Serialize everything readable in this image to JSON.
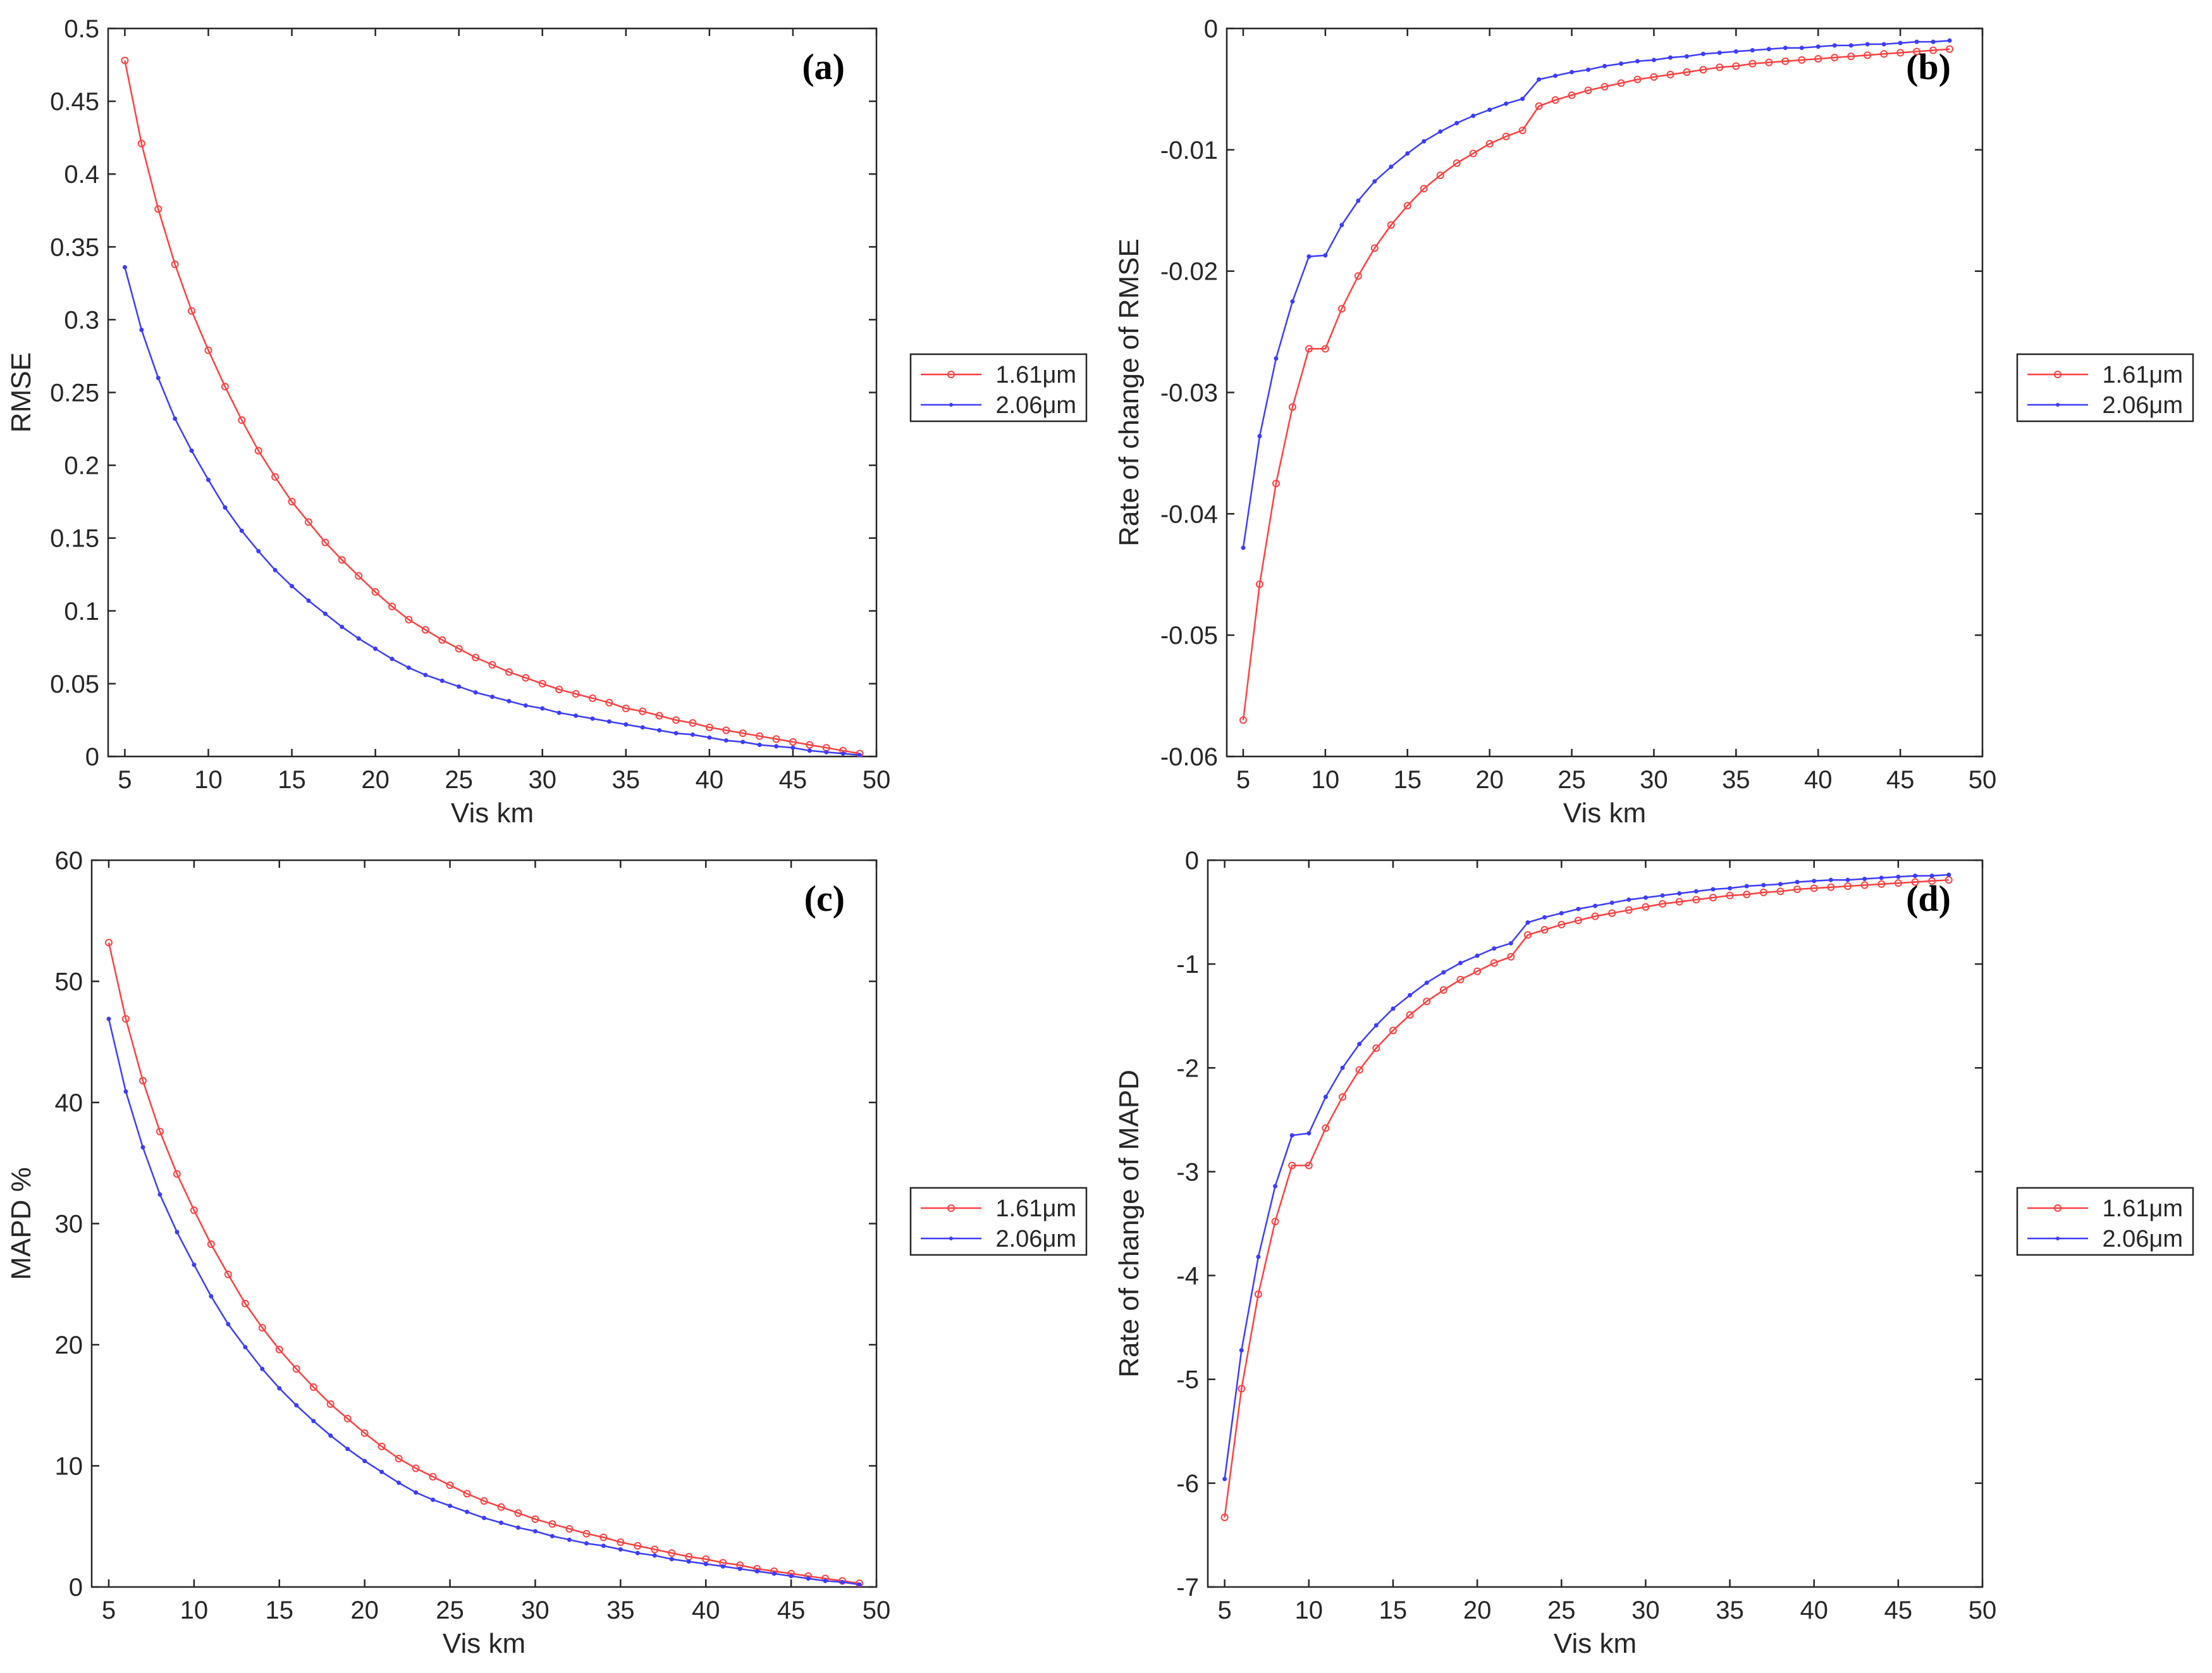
{
  "legend_series": [
    {
      "name": "1.61μm",
      "color": "#ff4040"
    },
    {
      "name": "2.06μm",
      "color": "#3c3cff"
    }
  ],
  "chart_data": [
    {
      "type": "line",
      "panel": "(a)",
      "xlabel": "Vis km",
      "ylabel": "RMSE",
      "xlim": [
        4,
        50
      ],
      "ylim": [
        0,
        0.5
      ],
      "xticks": [
        5,
        10,
        15,
        20,
        25,
        30,
        35,
        40,
        45,
        50
      ],
      "yticks": [
        0,
        0.05,
        0.1,
        0.15,
        0.2,
        0.25,
        0.3,
        0.35,
        0.4,
        0.45,
        0.5
      ],
      "x": [
        5,
        6,
        7,
        8,
        9,
        10,
        11,
        12,
        13,
        14,
        15,
        16,
        17,
        18,
        19,
        20,
        21,
        22,
        23,
        24,
        25,
        26,
        27,
        28,
        29,
        30,
        31,
        32,
        33,
        34,
        35,
        36,
        37,
        38,
        39,
        40,
        41,
        42,
        43,
        44,
        45,
        46,
        47,
        48,
        49
      ],
      "series": [
        {
          "name": "1.61μm",
          "marker": "circle",
          "values": [
            0.478,
            0.421,
            0.376,
            0.338,
            0.306,
            0.279,
            0.254,
            0.231,
            0.21,
            0.192,
            0.175,
            0.161,
            0.147,
            0.135,
            0.124,
            0.113,
            0.103,
            0.094,
            0.087,
            0.08,
            0.074,
            0.068,
            0.063,
            0.058,
            0.054,
            0.05,
            0.046,
            0.043,
            0.04,
            0.037,
            0.033,
            0.031,
            0.028,
            0.025,
            0.023,
            0.02,
            0.018,
            0.016,
            0.014,
            0.012,
            0.01,
            0.008,
            0.006,
            0.004,
            0.002
          ]
        },
        {
          "name": "2.06μm",
          "marker": "dot",
          "values": [
            0.336,
            0.293,
            0.26,
            0.232,
            0.21,
            0.19,
            0.171,
            0.155,
            0.141,
            0.128,
            0.117,
            0.107,
            0.098,
            0.089,
            0.081,
            0.074,
            0.067,
            0.061,
            0.056,
            0.052,
            0.048,
            0.044,
            0.041,
            0.038,
            0.035,
            0.033,
            0.03,
            0.028,
            0.026,
            0.024,
            0.022,
            0.02,
            0.018,
            0.016,
            0.015,
            0.013,
            0.011,
            0.01,
            0.008,
            0.007,
            0.006,
            0.004,
            0.003,
            0.002,
            0.001
          ]
        }
      ]
    },
    {
      "type": "line",
      "panel": "(b)",
      "xlabel": "Vis km",
      "ylabel": "Rate of change of RMSE",
      "xlim": [
        4,
        50
      ],
      "ylim": [
        -0.06,
        0
      ],
      "xticks": [
        5,
        10,
        15,
        20,
        25,
        30,
        35,
        40,
        45,
        50
      ],
      "yticks": [
        0,
        -0.01,
        -0.02,
        -0.03,
        -0.04,
        -0.05,
        -0.06
      ],
      "x": [
        5,
        6,
        7,
        8,
        9,
        10,
        11,
        12,
        13,
        14,
        15,
        16,
        17,
        18,
        19,
        20,
        21,
        22,
        23,
        24,
        25,
        26,
        27,
        28,
        29,
        30,
        31,
        32,
        33,
        34,
        35,
        36,
        37,
        38,
        39,
        40,
        41,
        42,
        43,
        44,
        45,
        46,
        47,
        48
      ],
      "series": [
        {
          "name": "1.61μm",
          "marker": "circle",
          "values": [
            -0.057,
            -0.0458,
            -0.0375,
            -0.0312,
            -0.0264,
            -0.0264,
            -0.0231,
            -0.0204,
            -0.0181,
            -0.0162,
            -0.0146,
            -0.0132,
            -0.0121,
            -0.0111,
            -0.0103,
            -0.0095,
            -0.0089,
            -0.0084,
            -0.0064,
            -0.0059,
            -0.0055,
            -0.0051,
            -0.0048,
            -0.0045,
            -0.0042,
            -0.004,
            -0.0038,
            -0.0036,
            -0.0034,
            -0.0032,
            -0.0031,
            -0.0029,
            -0.0028,
            -0.0027,
            -0.0026,
            -0.0025,
            -0.0024,
            -0.0023,
            -0.0022,
            -0.0021,
            -0.002,
            -0.0019,
            -0.0018,
            -0.0017
          ]
        },
        {
          "name": "2.06μm",
          "marker": "dot",
          "values": [
            -0.0428,
            -0.0336,
            -0.0272,
            -0.0225,
            -0.0188,
            -0.0187,
            -0.0162,
            -0.0142,
            -0.0126,
            -0.0114,
            -0.0103,
            -0.0093,
            -0.0085,
            -0.0078,
            -0.0072,
            -0.0067,
            -0.0062,
            -0.0058,
            -0.0042,
            -0.0039,
            -0.0036,
            -0.0034,
            -0.0031,
            -0.0029,
            -0.0027,
            -0.0026,
            -0.0024,
            -0.0023,
            -0.0021,
            -0.002,
            -0.0019,
            -0.0018,
            -0.0017,
            -0.0016,
            -0.0016,
            -0.0015,
            -0.0014,
            -0.0014,
            -0.0013,
            -0.0013,
            -0.0012,
            -0.0011,
            -0.0011,
            -0.001
          ]
        }
      ]
    },
    {
      "type": "line",
      "panel": "(c)",
      "xlabel": "Vis km",
      "ylabel": "MAPD %",
      "xlim": [
        4,
        50
      ],
      "ylim": [
        0,
        60
      ],
      "xticks": [
        5,
        10,
        15,
        20,
        25,
        30,
        35,
        40,
        45,
        50
      ],
      "yticks": [
        0,
        10,
        20,
        30,
        40,
        50,
        60
      ],
      "x": [
        5,
        6,
        7,
        8,
        9,
        10,
        11,
        12,
        13,
        14,
        15,
        16,
        17,
        18,
        19,
        20,
        21,
        22,
        23,
        24,
        25,
        26,
        27,
        28,
        29,
        30,
        31,
        32,
        33,
        34,
        35,
        36,
        37,
        38,
        39,
        40,
        41,
        42,
        43,
        44,
        45,
        46,
        47,
        48,
        49
      ],
      "series": [
        {
          "name": "1.61μm",
          "marker": "circle",
          "values": [
            53.2,
            46.9,
            41.8,
            37.6,
            34.1,
            31.1,
            28.3,
            25.8,
            23.4,
            21.4,
            19.6,
            18,
            16.5,
            15.1,
            13.9,
            12.7,
            11.6,
            10.6,
            9.8,
            9.1,
            8.4,
            7.7,
            7.1,
            6.6,
            6.1,
            5.6,
            5.2,
            4.8,
            4.4,
            4.1,
            3.7,
            3.4,
            3.1,
            2.8,
            2.5,
            2.3,
            2,
            1.8,
            1.5,
            1.3,
            1.1,
            0.9,
            0.7,
            0.5,
            0.3
          ]
        },
        {
          "name": "2.06μm",
          "marker": "dot",
          "values": [
            46.9,
            40.9,
            36.3,
            32.4,
            29.3,
            26.6,
            24,
            21.7,
            19.8,
            18,
            16.4,
            15,
            13.7,
            12.5,
            11.4,
            10.4,
            9.5,
            8.6,
            7.8,
            7.2,
            6.7,
            6.2,
            5.7,
            5.3,
            4.9,
            4.6,
            4.2,
            3.9,
            3.6,
            3.4,
            3.1,
            2.8,
            2.6,
            2.3,
            2.1,
            1.9,
            1.7,
            1.5,
            1.3,
            1.1,
            0.9,
            0.7,
            0.5,
            0.4,
            0.2
          ]
        }
      ]
    },
    {
      "type": "line",
      "panel": "(d)",
      "xlabel": "Vis km",
      "ylabel": "Rate of change of MAPD",
      "xlim": [
        4,
        50
      ],
      "ylim": [
        -7,
        0
      ],
      "xticks": [
        5,
        10,
        15,
        20,
        25,
        30,
        35,
        40,
        45,
        50
      ],
      "yticks": [
        0,
        -1,
        -2,
        -3,
        -4,
        -5,
        -6,
        -7
      ],
      "x": [
        5,
        6,
        7,
        8,
        9,
        10,
        11,
        12,
        13,
        14,
        15,
        16,
        17,
        18,
        19,
        20,
        21,
        22,
        23,
        24,
        25,
        26,
        27,
        28,
        29,
        30,
        31,
        32,
        33,
        34,
        35,
        36,
        37,
        38,
        39,
        40,
        41,
        42,
        43,
        44,
        45,
        46,
        47,
        48
      ],
      "series": [
        {
          "name": "1.61μm",
          "marker": "circle",
          "values": [
            -6.33,
            -5.09,
            -4.18,
            -3.48,
            -2.94,
            -2.94,
            -2.58,
            -2.28,
            -2.02,
            -1.81,
            -1.64,
            -1.49,
            -1.36,
            -1.25,
            -1.15,
            -1.07,
            -0.99,
            -0.93,
            -0.72,
            -0.67,
            -0.62,
            -0.58,
            -0.54,
            -0.51,
            -0.48,
            -0.45,
            -0.42,
            -0.4,
            -0.38,
            -0.36,
            -0.34,
            -0.33,
            -0.31,
            -0.3,
            -0.28,
            -0.27,
            -0.26,
            -0.25,
            -0.24,
            -0.23,
            -0.22,
            -0.21,
            -0.2,
            -0.19
          ]
        },
        {
          "name": "2.06μm",
          "marker": "dot",
          "values": [
            -5.96,
            -4.72,
            -3.82,
            -3.14,
            -2.65,
            -2.63,
            -2.28,
            -2,
            -1.77,
            -1.59,
            -1.43,
            -1.3,
            -1.18,
            -1.08,
            -0.99,
            -0.92,
            -0.85,
            -0.8,
            -0.6,
            -0.55,
            -0.51,
            -0.47,
            -0.44,
            -0.41,
            -0.38,
            -0.36,
            -0.34,
            -0.32,
            -0.3,
            -0.28,
            -0.27,
            -0.25,
            -0.24,
            -0.23,
            -0.21,
            -0.2,
            -0.19,
            -0.19,
            -0.18,
            -0.17,
            -0.16,
            -0.15,
            -0.15,
            -0.14
          ]
        }
      ]
    }
  ]
}
